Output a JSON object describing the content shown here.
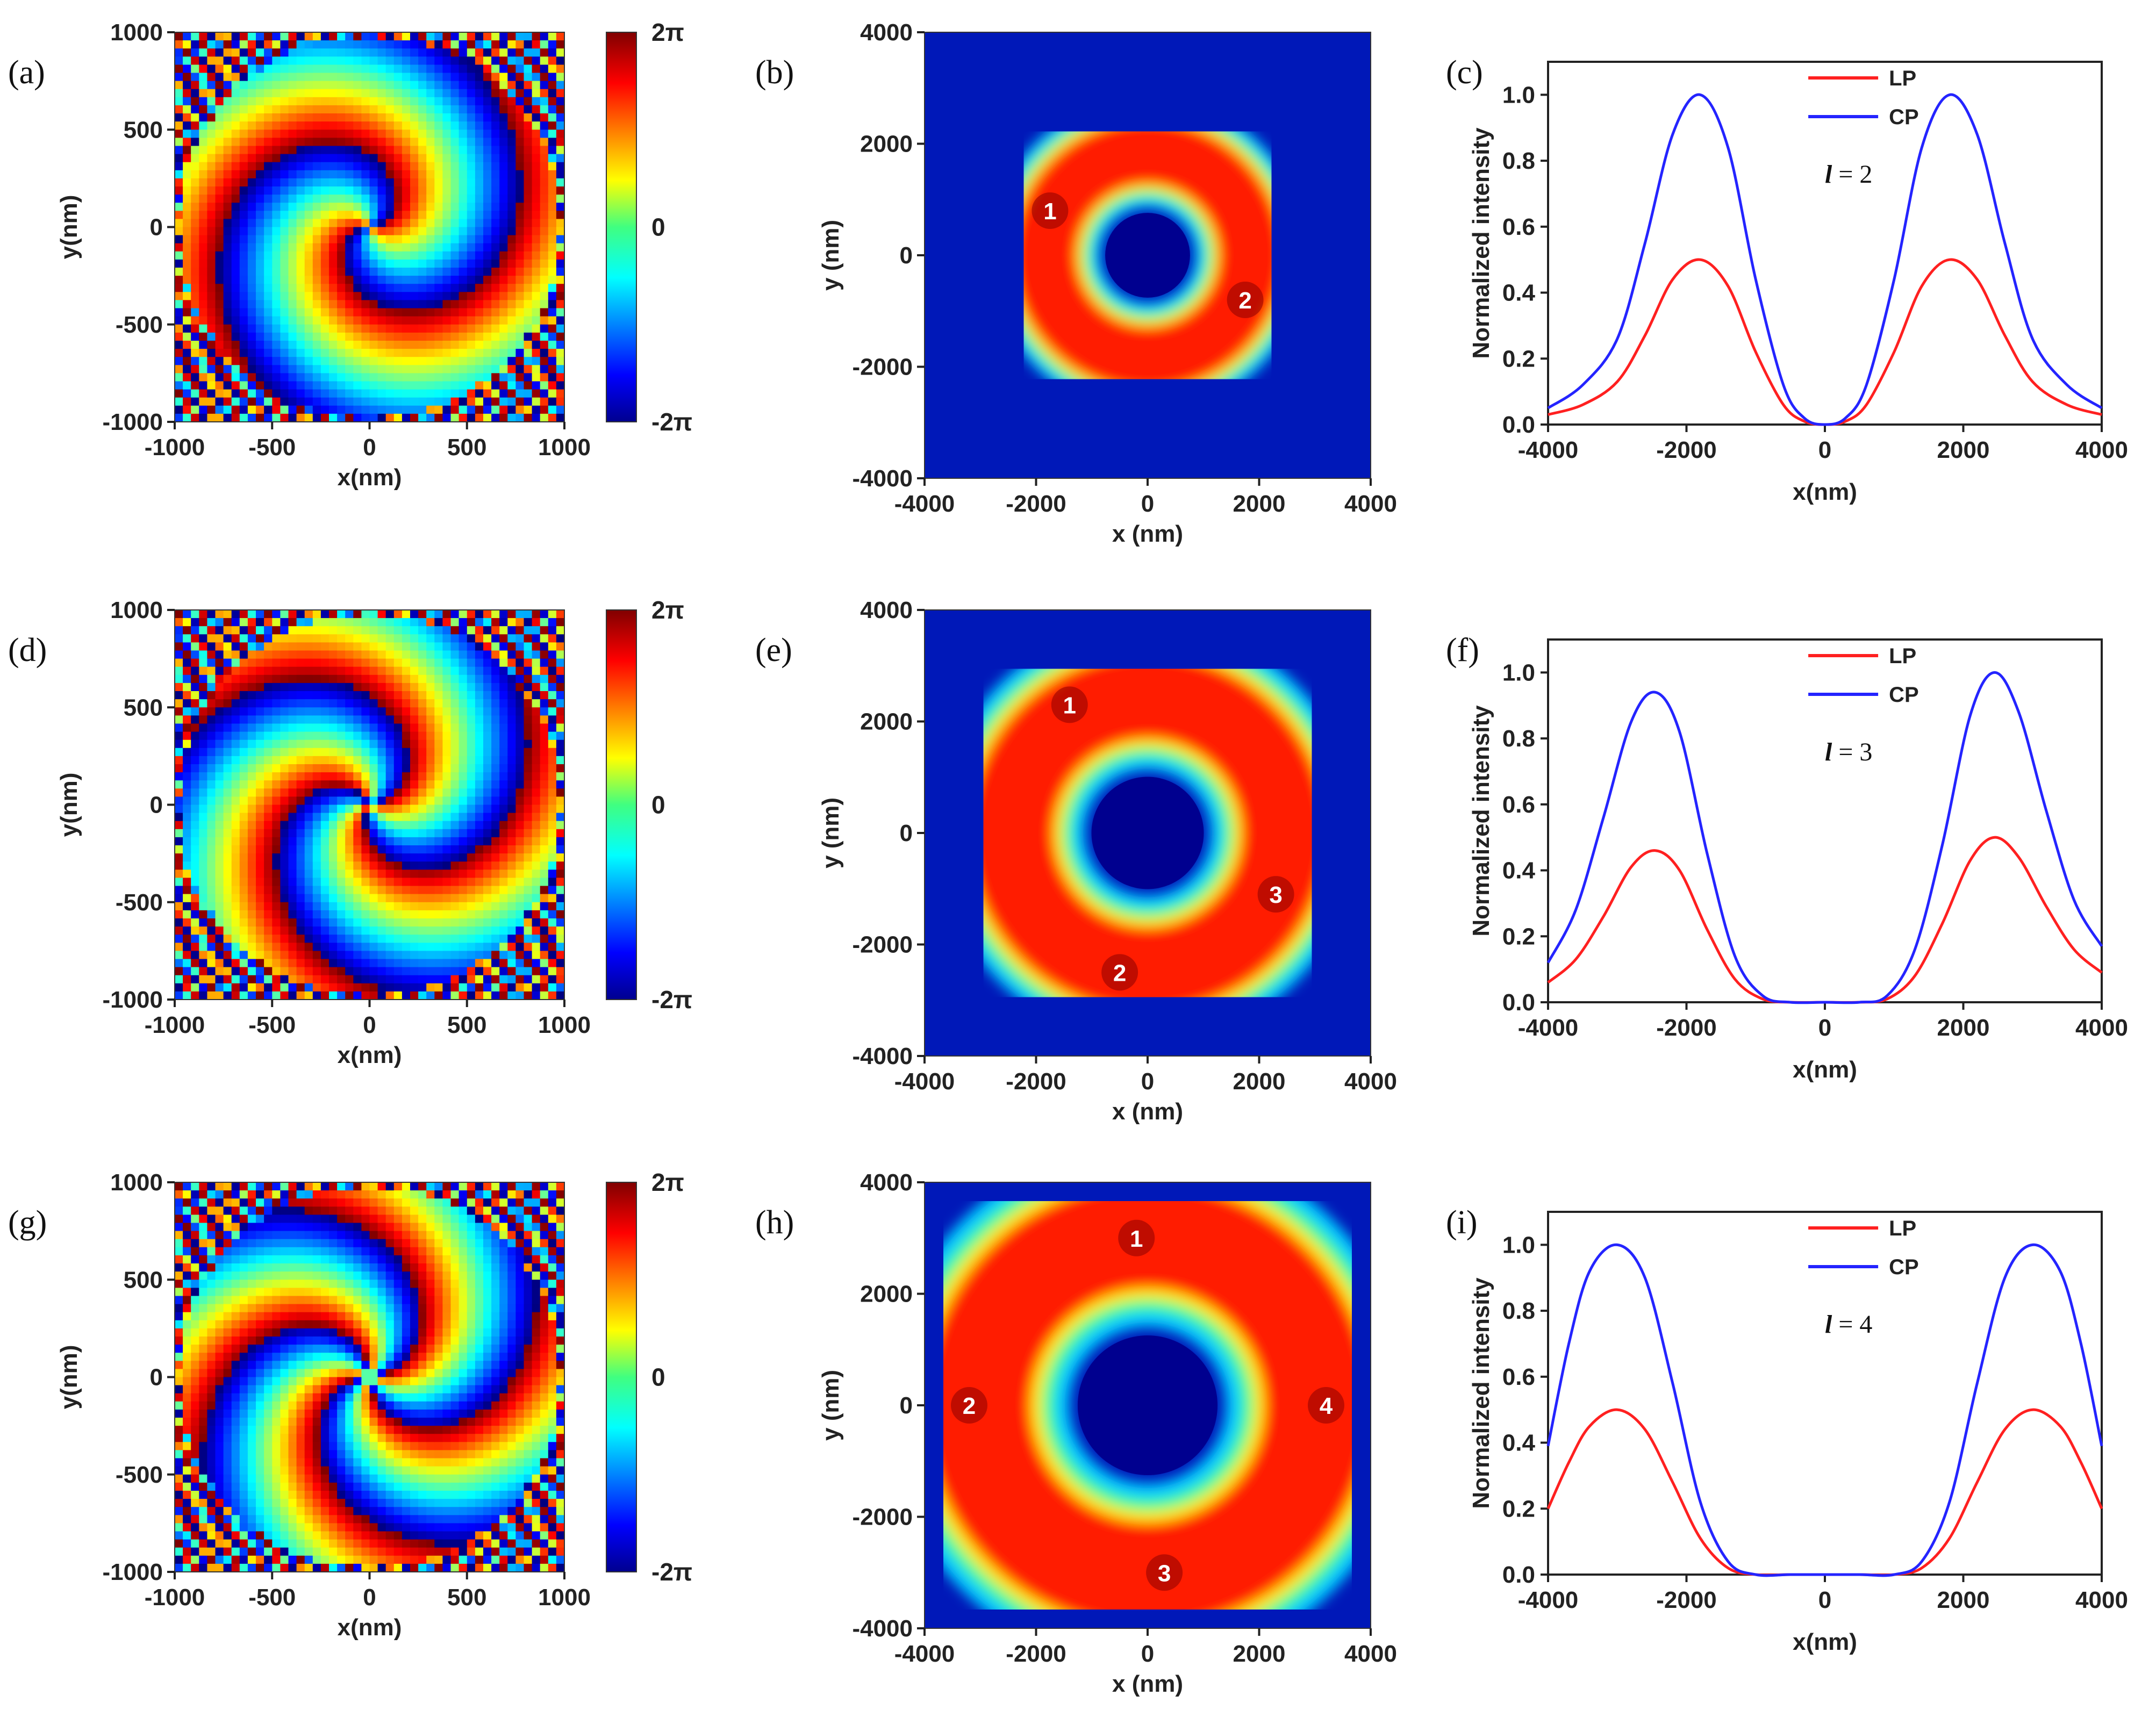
{
  "figure": {
    "panel_labels": [
      "(a)",
      "(b)",
      "(c)",
      "(d)",
      "(e)",
      "(f)",
      "(g)",
      "(h)",
      "(i)"
    ],
    "colors": {
      "lp": "#ff2020",
      "cp": "#2424ff",
      "jet_low": "#00008f",
      "jet_high": "#800000"
    }
  },
  "chart_data": [
    {
      "panel": "(a)",
      "type": "heatmap",
      "title": "",
      "content": "phase map, 2 spiral arms",
      "arms": 2,
      "xlabel": "x(nm)",
      "ylabel": "y(nm)",
      "xlim": [
        -1000,
        1000
      ],
      "ylim": [
        -1000,
        1000
      ],
      "xticks": [
        "-1000",
        "-500",
        "0",
        "500",
        "1000"
      ],
      "yticks": [
        "-1000",
        "-500",
        "0",
        "500",
        "1000"
      ],
      "colorbar": {
        "labels": [
          "2π",
          "0",
          "-2π"
        ],
        "range": [
          -6.283,
          6.283
        ]
      }
    },
    {
      "panel": "(b)",
      "type": "heatmap",
      "title": "",
      "content": "intensity ring",
      "ring_radius": 1850,
      "xlabel": "x (nm)",
      "ylabel": "y (nm)",
      "xlim": [
        -4000,
        4000
      ],
      "ylim": [
        -4000,
        4000
      ],
      "xticks": [
        "-4000",
        "-2000",
        "0",
        "2000",
        "4000"
      ],
      "yticks": [
        "-4000",
        "-2000",
        "0",
        "2000",
        "4000"
      ],
      "annotations": [
        {
          "text": "1",
          "x": -1750,
          "y": 800
        },
        {
          "text": "2",
          "x": 1750,
          "y": -800
        }
      ]
    },
    {
      "panel": "(c)",
      "type": "line",
      "title": "",
      "xlabel": "x(nm)",
      "ylabel": "Normalized intensity",
      "xlim": [
        -4000,
        4000
      ],
      "ylim": [
        0,
        1.1
      ],
      "xticks": [
        "-4000",
        "-2000",
        "0",
        "2000",
        "4000"
      ],
      "yticks": [
        "0.0",
        "0.2",
        "0.4",
        "0.6",
        "0.8",
        "1.0"
      ],
      "l_label": "l",
      "l_value": "= 2",
      "series": [
        {
          "name": "LP",
          "x": [
            -4000,
            -3500,
            -3000,
            -2600,
            -2200,
            -1800,
            -1400,
            -1000,
            -600,
            -300,
            0,
            300,
            600,
            1000,
            1400,
            1800,
            2200,
            2600,
            3000,
            3500,
            4000
          ],
          "y": [
            0.03,
            0.06,
            0.13,
            0.27,
            0.44,
            0.5,
            0.42,
            0.22,
            0.06,
            0.01,
            0.0,
            0.01,
            0.06,
            0.22,
            0.42,
            0.5,
            0.44,
            0.27,
            0.13,
            0.06,
            0.03
          ]
        },
        {
          "name": "CP",
          "x": [
            -4000,
            -3500,
            -3000,
            -2600,
            -2200,
            -1800,
            -1400,
            -1000,
            -600,
            -300,
            0,
            300,
            600,
            1000,
            1400,
            1800,
            2200,
            2600,
            3000,
            3500,
            4000
          ],
          "y": [
            0.05,
            0.12,
            0.26,
            0.55,
            0.88,
            1.0,
            0.84,
            0.44,
            0.12,
            0.02,
            0.0,
            0.02,
            0.12,
            0.44,
            0.84,
            1.0,
            0.88,
            0.55,
            0.26,
            0.12,
            0.05
          ]
        }
      ]
    },
    {
      "panel": "(d)",
      "type": "heatmap",
      "title": "",
      "content": "phase map, 3 spiral arms",
      "arms": 3,
      "xlabel": "x(nm)",
      "ylabel": "y(nm)",
      "xlim": [
        -1000,
        1000
      ],
      "ylim": [
        -1000,
        1000
      ],
      "xticks": [
        "-1000",
        "-500",
        "0",
        "500",
        "1000"
      ],
      "yticks": [
        "-1000",
        "-500",
        "0",
        "500",
        "1000"
      ],
      "colorbar": {
        "labels": [
          "2π",
          "0",
          "-2π"
        ],
        "range": [
          -6.283,
          6.283
        ]
      }
    },
    {
      "panel": "(e)",
      "type": "heatmap",
      "title": "",
      "content": "intensity ring",
      "ring_radius": 2450,
      "xlabel": "x (nm)",
      "ylabel": "y (nm)",
      "xlim": [
        -4000,
        4000
      ],
      "ylim": [
        -4000,
        4000
      ],
      "xticks": [
        "-4000",
        "-2000",
        "0",
        "2000",
        "4000"
      ],
      "yticks": [
        "-4000",
        "-2000",
        "0",
        "2000",
        "4000"
      ],
      "annotations": [
        {
          "text": "1",
          "x": -1400,
          "y": 2300
        },
        {
          "text": "3",
          "x": 2300,
          "y": -1100
        },
        {
          "text": "2",
          "x": -500,
          "y": -2500
        }
      ]
    },
    {
      "panel": "(f)",
      "type": "line",
      "title": "",
      "xlabel": "x(nm)",
      "ylabel": "Normalized intensity",
      "xlim": [
        -4000,
        4000
      ],
      "ylim": [
        0,
        1.1
      ],
      "xticks": [
        "-4000",
        "-2000",
        "0",
        "2000",
        "4000"
      ],
      "yticks": [
        "0.0",
        "0.2",
        "0.4",
        "0.6",
        "0.8",
        "1.0"
      ],
      "l_label": "l",
      "l_value": "= 3",
      "series": [
        {
          "name": "LP",
          "x": [
            -4000,
            -3600,
            -3200,
            -2800,
            -2450,
            -2100,
            -1700,
            -1300,
            -900,
            -500,
            0,
            500,
            900,
            1300,
            1700,
            2100,
            2450,
            2800,
            3200,
            3600,
            4000
          ],
          "y": [
            0.06,
            0.13,
            0.26,
            0.41,
            0.46,
            0.4,
            0.22,
            0.07,
            0.01,
            0.0,
            0.0,
            0.0,
            0.01,
            0.08,
            0.24,
            0.43,
            0.5,
            0.44,
            0.29,
            0.16,
            0.09
          ]
        },
        {
          "name": "CP",
          "x": [
            -4000,
            -3600,
            -3200,
            -2800,
            -2450,
            -2100,
            -1700,
            -1300,
            -900,
            -500,
            0,
            500,
            900,
            1300,
            1700,
            2100,
            2450,
            2800,
            3200,
            3600,
            4000
          ],
          "y": [
            0.12,
            0.28,
            0.56,
            0.85,
            0.94,
            0.82,
            0.45,
            0.14,
            0.02,
            0.0,
            0.0,
            0.0,
            0.02,
            0.16,
            0.48,
            0.87,
            1.0,
            0.88,
            0.58,
            0.31,
            0.17
          ]
        }
      ]
    },
    {
      "panel": "(g)",
      "type": "heatmap",
      "title": "",
      "content": "phase map, 4 spiral arms",
      "arms": 4,
      "xlabel": "x(nm)",
      "ylabel": "y(nm)",
      "xlim": [
        -1000,
        1000
      ],
      "ylim": [
        -1000,
        1000
      ],
      "xticks": [
        "-1000",
        "-500",
        "0",
        "500",
        "1000"
      ],
      "yticks": [
        "-1000",
        "-500",
        "0",
        "500",
        "1000"
      ],
      "colorbar": {
        "labels": [
          "2π",
          "0",
          "-2π"
        ],
        "range": [
          -6.283,
          6.283
        ]
      }
    },
    {
      "panel": "(h)",
      "type": "heatmap",
      "title": "",
      "content": "intensity ring",
      "ring_radius": 3050,
      "xlabel": "x (nm)",
      "ylabel": "y (nm)",
      "xlim": [
        -4000,
        4000
      ],
      "ylim": [
        -4000,
        4000
      ],
      "xticks": [
        "-4000",
        "-2000",
        "0",
        "2000",
        "4000"
      ],
      "yticks": [
        "-4000",
        "-2000",
        "0",
        "2000",
        "4000"
      ],
      "annotations": [
        {
          "text": "1",
          "x": -200,
          "y": 3000
        },
        {
          "text": "2",
          "x": -3200,
          "y": 0
        },
        {
          "text": "4",
          "x": 3200,
          "y": 0
        },
        {
          "text": "3",
          "x": 300,
          "y": -3000
        }
      ]
    },
    {
      "panel": "(i)",
      "type": "line",
      "title": "",
      "xlabel": "x(nm)",
      "ylabel": "Normalized intensity",
      "xlim": [
        -4000,
        4000
      ],
      "ylim": [
        0,
        1.1
      ],
      "xticks": [
        "-4000",
        "-2000",
        "0",
        "2000",
        "4000"
      ],
      "yticks": [
        "0.0",
        "0.2",
        "0.4",
        "0.6",
        "0.8",
        "1.0"
      ],
      "l_label": "l",
      "l_value": "= 4",
      "series": [
        {
          "name": "LP",
          "x": [
            -4000,
            -3700,
            -3400,
            -3000,
            -2600,
            -2200,
            -1800,
            -1400,
            -1000,
            -500,
            0,
            500,
            1000,
            1400,
            1800,
            2200,
            2600,
            3000,
            3400,
            3700,
            4000
          ],
          "y": [
            0.2,
            0.34,
            0.45,
            0.5,
            0.44,
            0.28,
            0.11,
            0.02,
            0.0,
            0.0,
            0.0,
            0.0,
            0.0,
            0.02,
            0.11,
            0.28,
            0.44,
            0.5,
            0.45,
            0.34,
            0.2
          ]
        },
        {
          "name": "CP",
          "x": [
            -4000,
            -3700,
            -3400,
            -3000,
            -2600,
            -2200,
            -1800,
            -1400,
            -1000,
            -500,
            0,
            500,
            1000,
            1400,
            1800,
            2200,
            2600,
            3000,
            3400,
            3700,
            4000
          ],
          "y": [
            0.39,
            0.7,
            0.92,
            1.0,
            0.9,
            0.58,
            0.22,
            0.04,
            0.0,
            0.0,
            0.0,
            0.0,
            0.0,
            0.04,
            0.22,
            0.58,
            0.9,
            1.0,
            0.92,
            0.7,
            0.39
          ]
        }
      ]
    }
  ]
}
